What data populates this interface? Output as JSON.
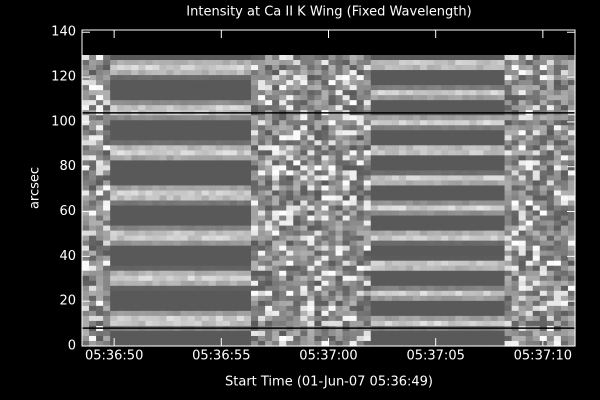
{
  "chart_data": {
    "type": "image",
    "title": "Intensity at Ca II K Wing (Fixed Wavelength)",
    "x_label": "Start Time (01-Jun-07 05:36:49)",
    "y_label": "arcsec",
    "xlim": [
      -0.5,
      22.5
    ],
    "xticks": [
      {
        "value": 1,
        "label": "05:36:50"
      },
      {
        "value": 6,
        "label": "05:36:55"
      },
      {
        "value": 11,
        "label": "05:37:00"
      },
      {
        "value": 16,
        "label": "05:37:05"
      },
      {
        "value": 21,
        "label": "05:37:10"
      }
    ],
    "ylim": [
      0,
      141
    ],
    "yticks": [
      0,
      20,
      40,
      60,
      80,
      100,
      120,
      140
    ],
    "hlines": [
      104,
      8
    ],
    "colormap": "gray",
    "background": "#000000",
    "foreground": "#ffffff"
  }
}
